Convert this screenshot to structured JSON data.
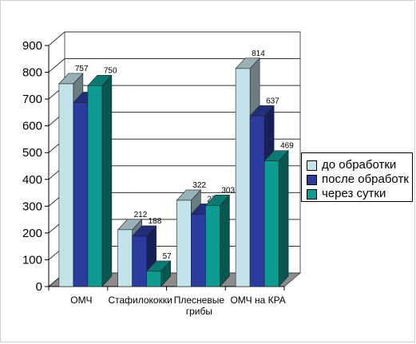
{
  "chart_data": {
    "type": "bar",
    "title": "",
    "xlabel": "",
    "ylabel": "",
    "ylim": [
      0,
      900
    ],
    "y_ticks": [
      0,
      100,
      200,
      300,
      400,
      500,
      600,
      700,
      800,
      900
    ],
    "grid": true,
    "legend_position": "right",
    "categories": [
      "ОМЧ",
      "Стафилококки",
      "Плесневые грибы",
      "ОМЧ на КРА"
    ],
    "category_lines": [
      [
        "ОМЧ"
      ],
      [
        "Стафилококки"
      ],
      [
        "Плесневые",
        "грибы"
      ],
      [
        "ОМЧ на КРА"
      ]
    ],
    "series": [
      {
        "name": "до обработки",
        "values": [
          757,
          212,
          322,
          814
        ],
        "color": "#c3e3ea"
      },
      {
        "name": "после обработк",
        "values": [
          687,
          188,
          270,
          637
        ],
        "color": "#2b3b9e"
      },
      {
        "name": "через сутки",
        "values": [
          750,
          57,
          303,
          469
        ],
        "color": "#0d9c92"
      }
    ]
  }
}
